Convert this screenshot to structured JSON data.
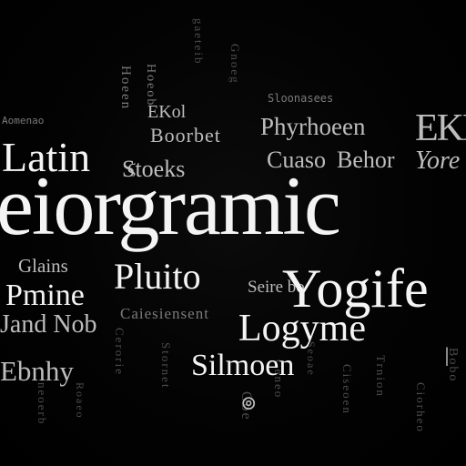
{
  "words": {
    "latin": "Latin",
    "eiorgramic": "eiorgramic",
    "yogife": "Yogife",
    "logyme": "Logyme",
    "silmoen": "Silmoen",
    "pluito": "Pluito",
    "pmine": "Pmine",
    "glains": "Glains",
    "phyrhoeen": "Phyrhoeen",
    "cuaso": "Cuaso",
    "behor": "Behor",
    "stoeks": "Stoeks",
    "yore": "Yore",
    "ebnhy": "Ebnhy",
    "jandnob": "Jand Nob",
    "boorbet": "Boorbet",
    "ekol": "EKol",
    "ekn": "EKN",
    "seirebo": "Seire bo",
    "small_top_left": "Aomenao",
    "small_top_mid": "Sloonasees",
    "sub_glains": "Caiesiensent"
  }
}
